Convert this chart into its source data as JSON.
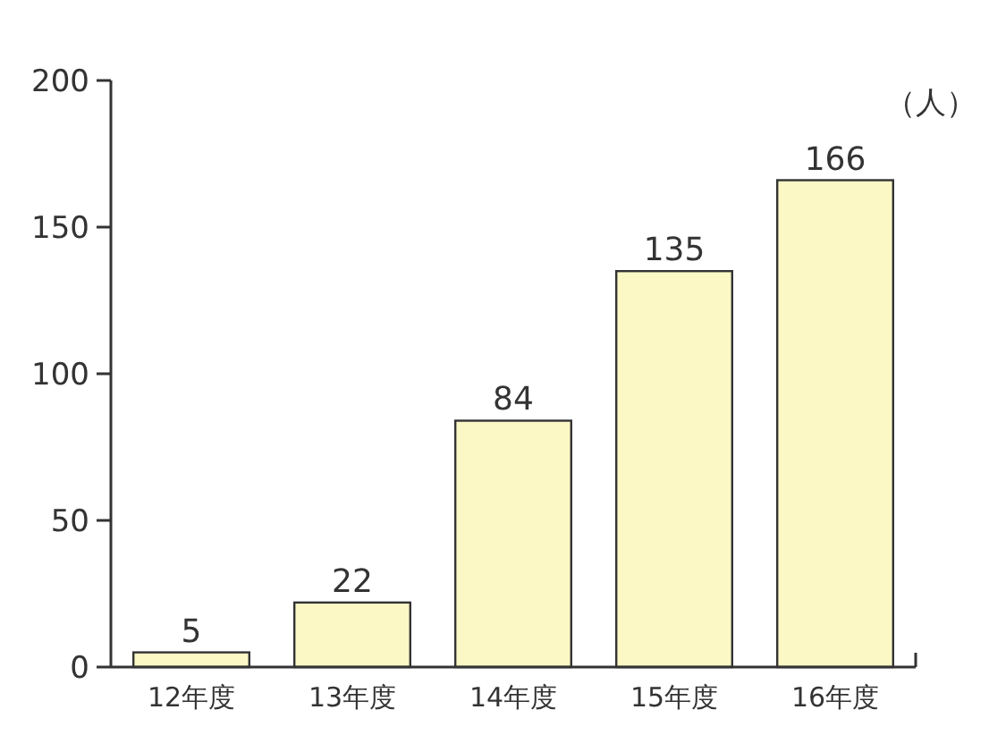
{
  "chart_data": {
    "type": "bar",
    "ylabel": "（人）",
    "categories": [
      "12年度",
      "13年度",
      "14年度",
      "15年度",
      "16年度"
    ],
    "values": [
      5,
      22,
      84,
      135,
      166
    ],
    "color": "#fcf8c6",
    "ylim": [
      0,
      200
    ],
    "yticks": [
      0,
      50,
      100,
      150,
      200
    ],
    "grid": false,
    "data_labels": true
  }
}
